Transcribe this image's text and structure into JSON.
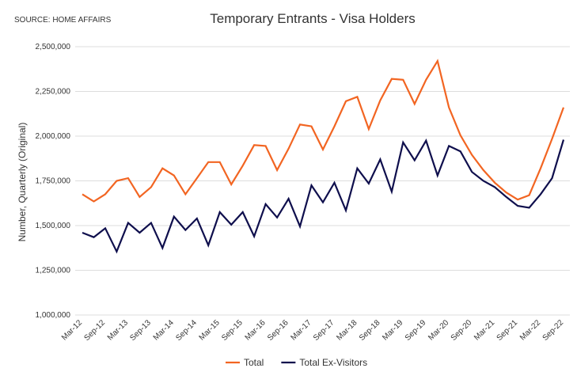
{
  "chart_data": {
    "type": "line",
    "title": "Temporary Entrants - Visa Holders",
    "source": "SOURCE: HOME AFFAIRS",
    "y_label": "Number, Quarterly (Original)",
    "categories": [
      "Mar-12",
      null,
      "Sep-12",
      null,
      "Mar-13",
      null,
      "Sep-13",
      null,
      "Mar-14",
      null,
      "Sep-14",
      null,
      "Mar-15",
      null,
      "Sep-15",
      null,
      "Mar-16",
      null,
      "Sep-16",
      null,
      "Mar-17",
      null,
      "Sep-17",
      null,
      "Mar-18",
      null,
      "Sep-18",
      null,
      "Mar-19",
      null,
      "Sep-19",
      null,
      "Mar-20",
      null,
      "Sep-20",
      null,
      "Mar-21",
      null,
      "Sep-21",
      null,
      "Mar-22",
      null,
      "Sep-22"
    ],
    "series": [
      {
        "name": "Total",
        "color": "#f26522",
        "values": [
          1675000,
          1635000,
          1675000,
          1750000,
          1765000,
          1660000,
          1715000,
          1820000,
          1780000,
          1675000,
          1765000,
          1855000,
          1855000,
          1730000,
          1835000,
          1950000,
          1945000,
          1810000,
          1930000,
          2065000,
          2055000,
          1925000,
          2055000,
          2195000,
          2220000,
          2040000,
          2200000,
          2320000,
          2315000,
          2180000,
          2315000,
          2420000,
          2160000,
          2005000,
          1895000,
          1810000,
          1740000,
          1685000,
          1645000,
          1670000,
          1820000,
          1985000,
          2160000
        ]
      },
      {
        "name": "Total Ex-Visitors",
        "color": "#0f0f4d",
        "values": [
          1460000,
          1435000,
          1485000,
          1355000,
          1515000,
          1460000,
          1515000,
          1375000,
          1550000,
          1475000,
          1540000,
          1390000,
          1575000,
          1505000,
          1575000,
          1440000,
          1620000,
          1545000,
          1650000,
          1495000,
          1725000,
          1630000,
          1740000,
          1585000,
          1820000,
          1735000,
          1870000,
          1690000,
          1965000,
          1865000,
          1975000,
          1780000,
          1945000,
          1915000,
          1800000,
          1750000,
          1715000,
          1660000,
          1610000,
          1600000,
          1675000,
          1765000,
          1980000
        ]
      }
    ],
    "ylim": [
      1000000,
      2500000
    ],
    "yticks": [
      {
        "value": 1000000,
        "label": "1,000,000"
      },
      {
        "value": 1250000,
        "label": "1,250,000"
      },
      {
        "value": 1500000,
        "label": "1,500,000"
      },
      {
        "value": 1750000,
        "label": "1,750,000"
      },
      {
        "value": 2000000,
        "label": "2,000,000"
      },
      {
        "value": 2250000,
        "label": "2,250,000"
      },
      {
        "value": 2500000,
        "label": "2,500,000"
      }
    ],
    "grid": true
  }
}
